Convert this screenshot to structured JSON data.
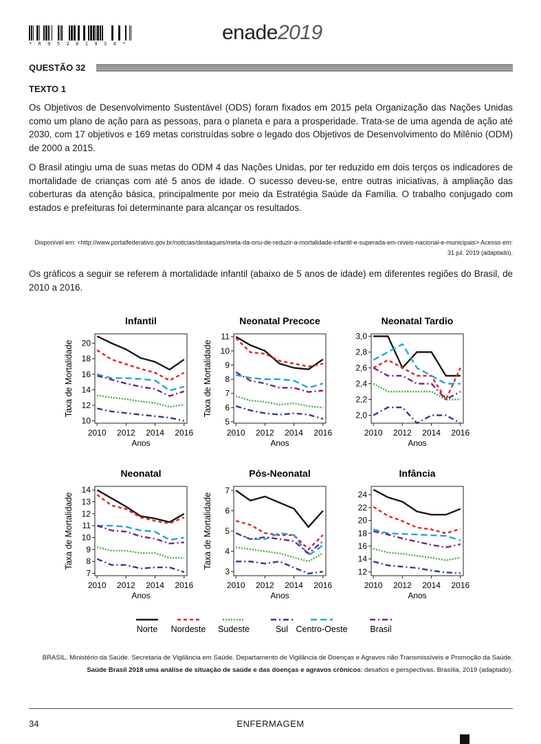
{
  "header": {
    "barcode_text": "* R 0 5 2 0 1 9 3 4 *",
    "logo_main": "enade",
    "logo_year": "2019"
  },
  "question": {
    "title": "QUESTÃO 32"
  },
  "text1": {
    "label": "TEXTO 1",
    "paragraph1": "Os Objetivos de Desenvolvimento Sustentável (ODS) foram fixados em 2015 pela Organização das Nações Unidas como um plano de ação para as pessoas, para o planeta e para a prosperidade. Trata-se de uma agenda de ação até 2030, com 17 objetivos e 169 metas construídas sobre o legado dos Objetivos de Desenvolvimento do Milênio (ODM) de 2000 a 2015.",
    "paragraph2": "O Brasil atingiu uma de suas metas do ODM 4 das Nações Unidas, por ter reduzido em dois terços os indicadores de mortalidade de crianças com até 5 anos de idade. O sucesso deveu-se, entre outras iniciativas, à ampliação das coberturas da atenção básica, principalmente por meio da Estratégia Saúde da Família. O trabalho conjugado com estados e prefeituras foi determinante para alcançar os resultados.",
    "source": "Disponível em: <http://www.portalfederativo.gov.br/noticias/destaques/meta-da-onu-de-reduzir-a-mortalidade-infantil-e-superada-em-niveis-nacional-e-municipais> Acesso em: 31 jul. 2019 (adaptado)."
  },
  "intro": "Os gráficos a seguir se referem à mortalidade infantil (abaixo de 5 anos de idade) em diferentes regiões do Brasil, de 2010 a 2016.",
  "series_styles": [
    {
      "name": "Norte",
      "color": "#1a1a1a",
      "dash": ""
    },
    {
      "name": "Nordeste",
      "color": "#e3231f",
      "dash": "5,4"
    },
    {
      "name": "Sudeste",
      "color": "#3cb043",
      "dash": "2,2"
    },
    {
      "name": "Sul",
      "color": "#2b3a8f",
      "dash": "8,4,2,4"
    },
    {
      "name": "Centro-Oeste",
      "color": "#19a7dc",
      "dash": "9,5"
    },
    {
      "name": "Brasil",
      "color": "#7b2082",
      "dash": "8,4,2,4"
    }
  ],
  "chart_data": [
    {
      "type": "line",
      "title": "Infantil",
      "xlabel": "Anos",
      "ylabel": "Taxa de Mortalidade",
      "x": [
        2010,
        2011,
        2012,
        2013,
        2014,
        2015,
        2016
      ],
      "xticks": [
        "2010",
        "2012",
        "2014",
        "2016"
      ],
      "yticks": [
        "10",
        "12",
        "14",
        "16",
        "18",
        "20"
      ],
      "ylim": [
        9.7,
        21.2
      ],
      "series": [
        {
          "name": "Norte",
          "values": [
            20.9,
            20.0,
            19.2,
            18.1,
            17.6,
            16.6,
            17.9
          ]
        },
        {
          "name": "Nordeste",
          "values": [
            19.1,
            17.9,
            17.3,
            16.7,
            16.2,
            15.2,
            16.2
          ]
        },
        {
          "name": "Sudeste",
          "values": [
            13.3,
            13.0,
            12.8,
            12.5,
            12.3,
            11.8,
            12.1
          ]
        },
        {
          "name": "Sul",
          "values": [
            11.6,
            11.2,
            11.0,
            10.8,
            10.6,
            10.4,
            10.0
          ]
        },
        {
          "name": "Centro-Oeste",
          "values": [
            16.0,
            15.5,
            15.5,
            15.4,
            15.2,
            13.9,
            14.4
          ]
        },
        {
          "name": "Brasil",
          "values": [
            15.8,
            15.3,
            14.8,
            14.4,
            14.1,
            13.2,
            13.8
          ]
        }
      ]
    },
    {
      "type": "line",
      "title": "Neonatal Precoce",
      "xlabel": "Anos",
      "ylabel": "Taxa de Mortalidade",
      "x": [
        2010,
        2011,
        2012,
        2013,
        2014,
        2015,
        2016
      ],
      "xticks": [
        "2010",
        "2012",
        "2014",
        "2016"
      ],
      "yticks": [
        "5",
        "6",
        "7",
        "8",
        "9",
        "10",
        "11"
      ],
      "ylim": [
        4.9,
        11.2
      ],
      "series": [
        {
          "name": "Norte",
          "values": [
            11.0,
            10.4,
            10.0,
            9.1,
            8.8,
            8.7,
            9.4
          ]
        },
        {
          "name": "Nordeste",
          "values": [
            10.9,
            9.9,
            9.8,
            9.3,
            9.1,
            8.9,
            9.1
          ]
        },
        {
          "name": "Sudeste",
          "values": [
            6.8,
            6.5,
            6.4,
            6.2,
            6.3,
            6.1,
            6.0
          ]
        },
        {
          "name": "Sul",
          "values": [
            6.1,
            5.8,
            5.6,
            5.5,
            5.6,
            5.5,
            5.2
          ]
        },
        {
          "name": "Centro-Oeste",
          "values": [
            8.3,
            8.1,
            8.0,
            8.0,
            7.9,
            7.4,
            7.7
          ]
        },
        {
          "name": "Brasil",
          "values": [
            8.5,
            7.9,
            7.7,
            7.4,
            7.4,
            7.1,
            7.2
          ]
        }
      ]
    },
    {
      "type": "line",
      "title": "Neonatal Tardio",
      "xlabel": "Anos",
      "ylabel": "",
      "x": [
        2010,
        2011,
        2012,
        2013,
        2014,
        2015,
        2016
      ],
      "xticks": [
        "2010",
        "2012",
        "2014",
        "2016"
      ],
      "yticks": [
        "2,0",
        "2,2",
        "2,4",
        "2,6",
        "2,8",
        "3,0"
      ],
      "ylim": [
        1.9,
        3.03
      ],
      "series": [
        {
          "name": "Norte",
          "values": [
            3.0,
            3.0,
            2.6,
            2.8,
            2.8,
            2.5,
            2.5
          ]
        },
        {
          "name": "Nordeste",
          "values": [
            2.6,
            2.7,
            2.6,
            2.5,
            2.5,
            2.2,
            2.6
          ]
        },
        {
          "name": "Sudeste",
          "values": [
            2.4,
            2.3,
            2.3,
            2.3,
            2.3,
            2.2,
            2.2
          ]
        },
        {
          "name": "Sul",
          "values": [
            2.0,
            2.1,
            2.1,
            1.9,
            2.0,
            2.0,
            1.9
          ]
        },
        {
          "name": "Centro-Oeste",
          "values": [
            2.7,
            2.8,
            2.9,
            2.6,
            2.5,
            2.4,
            2.4
          ]
        },
        {
          "name": "Brasil",
          "values": [
            2.6,
            2.5,
            2.5,
            2.4,
            2.4,
            2.2,
            2.3
          ]
        }
      ]
    },
    {
      "type": "line",
      "title": "Neonatal",
      "xlabel": "Anos",
      "ylabel": "Taxa de Mortalidade",
      "x": [
        2010,
        2011,
        2012,
        2013,
        2014,
        2015,
        2016
      ],
      "xticks": [
        "2010",
        "2012",
        "2014",
        "2016"
      ],
      "yticks": [
        "7",
        "8",
        "9",
        "10",
        "11",
        "12",
        "13",
        "14"
      ],
      "ylim": [
        6.8,
        14.3
      ],
      "series": [
        {
          "name": "Norte",
          "values": [
            14.0,
            13.3,
            12.6,
            11.8,
            11.6,
            11.3,
            12.0
          ]
        },
        {
          "name": "Nordeste",
          "values": [
            13.6,
            12.7,
            12.4,
            11.7,
            11.4,
            11.2,
            11.7
          ]
        },
        {
          "name": "Sudeste",
          "values": [
            9.2,
            8.9,
            8.9,
            8.7,
            8.7,
            8.3,
            8.3
          ]
        },
        {
          "name": "Sul",
          "values": [
            8.2,
            7.7,
            7.7,
            7.4,
            7.5,
            7.5,
            7.1
          ]
        },
        {
          "name": "Centro-Oeste",
          "values": [
            11.0,
            11.0,
            10.9,
            10.6,
            10.5,
            9.8,
            10.0
          ]
        },
        {
          "name": "Brasil",
          "values": [
            11.0,
            10.6,
            10.5,
            10.1,
            9.9,
            9.5,
            9.6
          ]
        }
      ]
    },
    {
      "type": "line",
      "title": "Pós-Neonatal",
      "xlabel": "Anos",
      "ylabel": "Taxa de Mortalidade",
      "x": [
        2010,
        2011,
        2012,
        2013,
        2014,
        2015,
        2016
      ],
      "xticks": [
        "2010",
        "2012",
        "2014",
        "2016"
      ],
      "yticks": [
        "3",
        "4",
        "5",
        "6",
        "7"
      ],
      "ylim": [
        2.8,
        7.2
      ],
      "series": [
        {
          "name": "Norte",
          "values": [
            7.0,
            6.5,
            6.7,
            6.4,
            6.1,
            5.2,
            6.0
          ]
        },
        {
          "name": "Nordeste",
          "values": [
            5.5,
            5.3,
            4.9,
            4.8,
            4.8,
            4.1,
            4.8
          ]
        },
        {
          "name": "Sudeste",
          "values": [
            4.2,
            4.1,
            4.0,
            3.9,
            3.7,
            3.5,
            3.9
          ]
        },
        {
          "name": "Sul",
          "values": [
            3.5,
            3.5,
            3.4,
            3.5,
            3.2,
            2.9,
            3.0
          ]
        },
        {
          "name": "Centro-Oeste",
          "values": [
            4.9,
            4.6,
            4.6,
            4.9,
            4.8,
            3.8,
            4.3
          ]
        },
        {
          "name": "Brasil",
          "values": [
            4.9,
            4.6,
            4.7,
            4.6,
            4.5,
            3.9,
            4.5
          ]
        }
      ]
    },
    {
      "type": "line",
      "title": "Infância",
      "xlabel": "Anos",
      "ylabel": "",
      "x": [
        2010,
        2011,
        2012,
        2013,
        2014,
        2015,
        2016
      ],
      "xticks": [
        "2010",
        "2012",
        "2014",
        "2016"
      ],
      "yticks": [
        "12",
        "14",
        "16",
        "18",
        "20",
        "22",
        "24"
      ],
      "ylim": [
        11.4,
        25.3
      ],
      "series": [
        {
          "name": "Norte",
          "values": [
            24.8,
            23.6,
            22.9,
            21.4,
            20.9,
            20.9,
            21.8
          ]
        },
        {
          "name": "Nordeste",
          "values": [
            22.1,
            20.7,
            19.9,
            18.9,
            18.6,
            18.0,
            18.7
          ]
        },
        {
          "name": "Sudeste",
          "values": [
            15.6,
            15.0,
            14.8,
            14.5,
            14.2,
            13.8,
            14.2
          ]
        },
        {
          "name": "Sul",
          "values": [
            13.6,
            13.0,
            12.8,
            12.6,
            12.2,
            11.9,
            11.8
          ]
        },
        {
          "name": "Centro-Oeste",
          "values": [
            18.6,
            18.0,
            17.9,
            17.8,
            17.7,
            17.6,
            16.9
          ]
        },
        {
          "name": "Brasil",
          "values": [
            18.3,
            17.8,
            17.2,
            16.7,
            16.2,
            15.8,
            16.3
          ]
        }
      ]
    }
  ],
  "legend": [
    "Norte",
    "Nordeste",
    "Sudeste",
    "Sul",
    "Centro-Oeste",
    "Brasil"
  ],
  "reference": {
    "part1": "BRASIL. Ministério da Saúde. Secretaria de Vigilância em Saúde. Departamento de Vigilância de Doenças e Agravos não Transmissíveis e Promoção da Saúde. ",
    "bold": "Saúde Brasil 2018 uma análise de situação de saúde e das doenças e agravos crônicos",
    "part2": ": desafios e perspectivas. Brasília, 2019 (adaptado)."
  },
  "footer": {
    "page": "34",
    "course": "ENFERMAGEM"
  }
}
